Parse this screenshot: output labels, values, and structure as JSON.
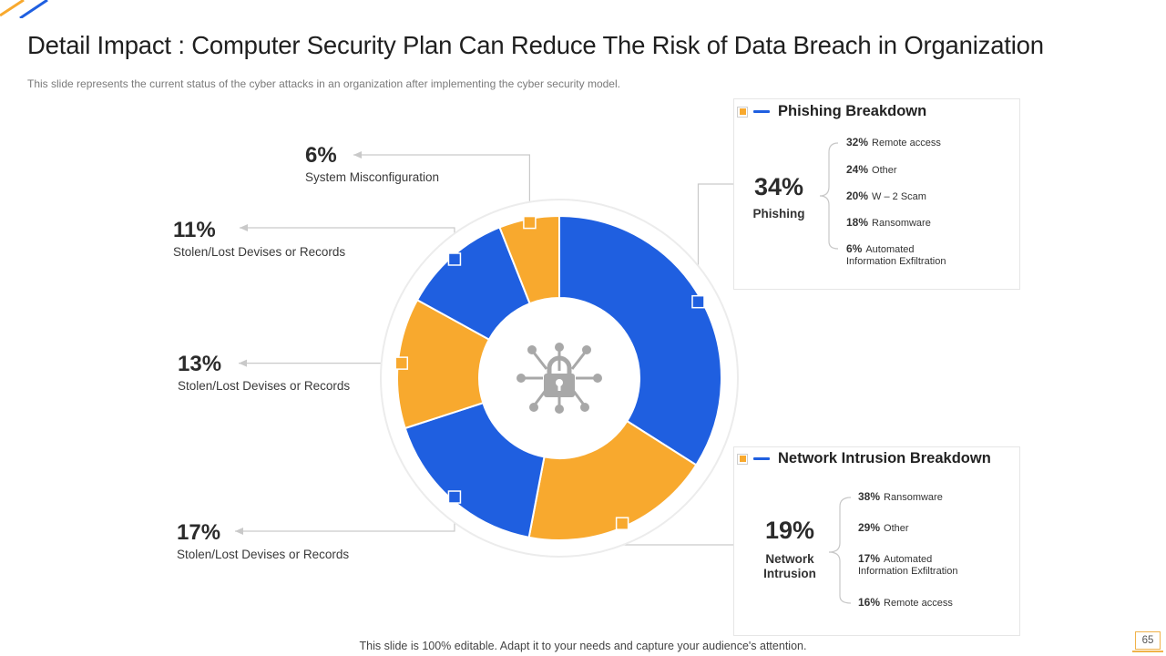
{
  "title": "Detail Impact : Computer Security Plan Can Reduce The Risk of Data Breach in Organization",
  "subtitle": "This slide represents the current status of the cyber attacks in an organization after implementing the cyber security model.",
  "chart_data": {
    "type": "pie",
    "variant": "donut",
    "slices": [
      {
        "label": "Phishing",
        "value": 34,
        "color": "#1f5fe0"
      },
      {
        "label": "Network Intrusion",
        "value": 19,
        "color": "#f8a92e"
      },
      {
        "label": "Stolen/Lost Devises or Records",
        "value": 17,
        "color": "#1f5fe0"
      },
      {
        "label": "Stolen/Lost Devises or Records",
        "value": 13,
        "color": "#f8a92e"
      },
      {
        "label": "Stolen/Lost Devises or Records",
        "value": 11,
        "color": "#1f5fe0"
      },
      {
        "label": "System Misconfiguration",
        "value": 6,
        "color": "#f8a92e"
      }
    ],
    "center_icon": "lock-network-icon"
  },
  "callouts": {
    "misconfig": {
      "pct": "6%",
      "label": "System Misconfiguration"
    },
    "stolen11": {
      "pct": "11%",
      "label": "Stolen/Lost Devises  or Records"
    },
    "stolen13": {
      "pct": "13%",
      "label": "Stolen/Lost Devises  or Records"
    },
    "stolen17": {
      "pct": "17%",
      "label": "Stolen/Lost Devises  or Records"
    }
  },
  "phishing": {
    "heading": "Phishing Breakdown",
    "pct": "34%",
    "label": "Phishing",
    "items": [
      {
        "v": "32%",
        "t": "Remote access"
      },
      {
        "v": "24%",
        "t": "Other"
      },
      {
        "v": "20%",
        "t": "W – 2 Scam"
      },
      {
        "v": "18%",
        "t": "Ransomware"
      },
      {
        "v": "6%",
        "t": "Automated",
        "t2": "Information Exfiltration"
      }
    ]
  },
  "network": {
    "heading": "Network Intrusion Breakdown",
    "pct": "19%",
    "label1": "Network",
    "label2": "Intrusion",
    "items": [
      {
        "v": "38%",
        "t": "Ransomware"
      },
      {
        "v": "29%",
        "t": "Other"
      },
      {
        "v": "17%",
        "t": "Automated",
        "t2": "Information Exfiltration"
      },
      {
        "v": "16%",
        "t": "Remote access"
      }
    ]
  },
  "footer": "This slide is 100% editable. Adapt it to your needs and capture your audience's attention.",
  "page_number": "65",
  "colors": {
    "blue": "#1f5fe0",
    "orange": "#f8a92e"
  }
}
